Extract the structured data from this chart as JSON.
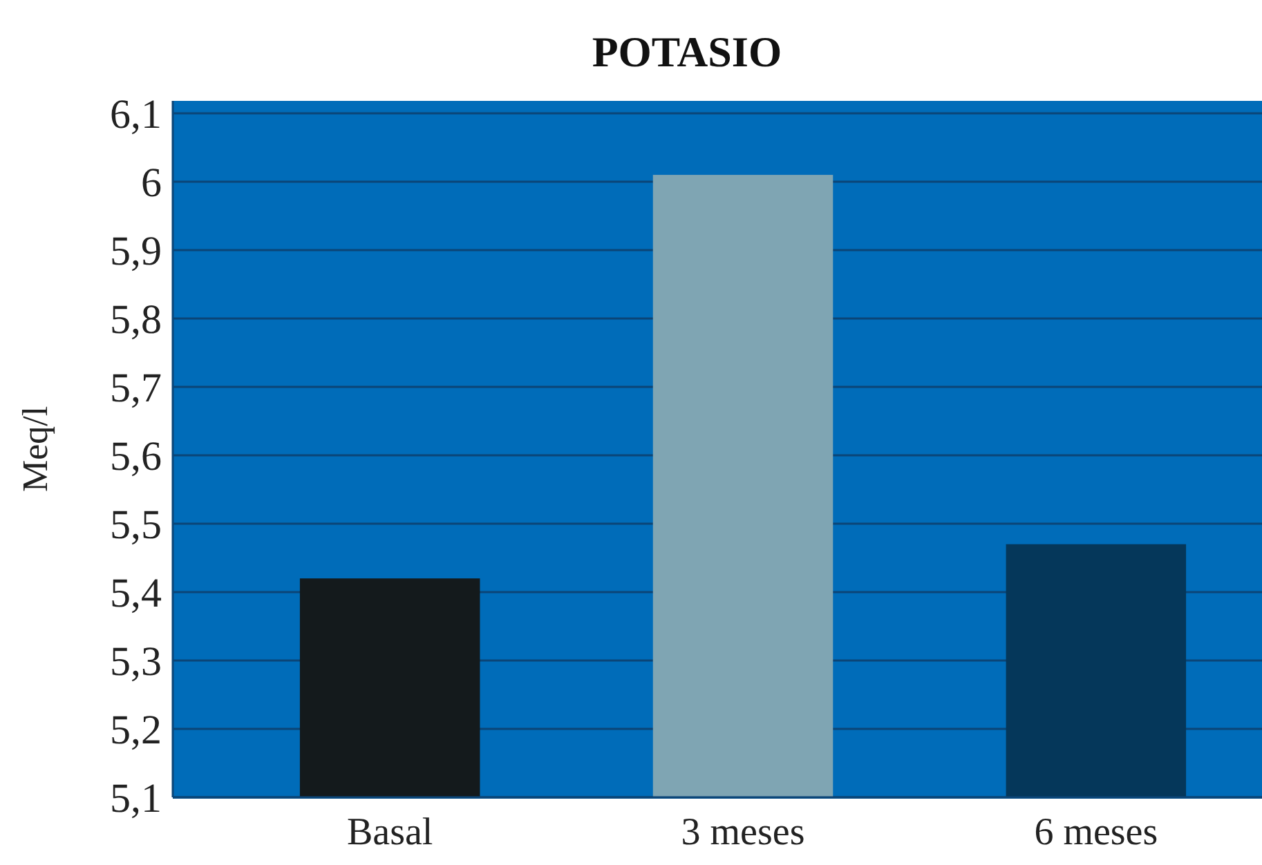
{
  "chart_data": {
    "type": "bar",
    "title": "POTASIO",
    "ylabel": "Meq/l",
    "categories": [
      "Basal",
      "3 meses",
      "6 meses"
    ],
    "values": [
      5.42,
      6.01,
      5.47
    ],
    "colors": [
      "#141a1c",
      "#7fa5b3",
      "#05375a"
    ],
    "ylim": [
      5.1,
      6.1
    ],
    "yticks": [
      {
        "value": 5.1,
        "label": "5,1"
      },
      {
        "value": 5.2,
        "label": "5,2"
      },
      {
        "value": 5.3,
        "label": "5,3"
      },
      {
        "value": 5.4,
        "label": "5,4"
      },
      {
        "value": 5.5,
        "label": "5,5"
      },
      {
        "value": 5.6,
        "label": "5,6"
      },
      {
        "value": 5.7,
        "label": "5,7"
      },
      {
        "value": 5.8,
        "label": "5,8"
      },
      {
        "value": 5.9,
        "label": "5,9"
      },
      6,
      {
        "value": 6.1,
        "label": "6,1"
      }
    ],
    "grid": true
  }
}
